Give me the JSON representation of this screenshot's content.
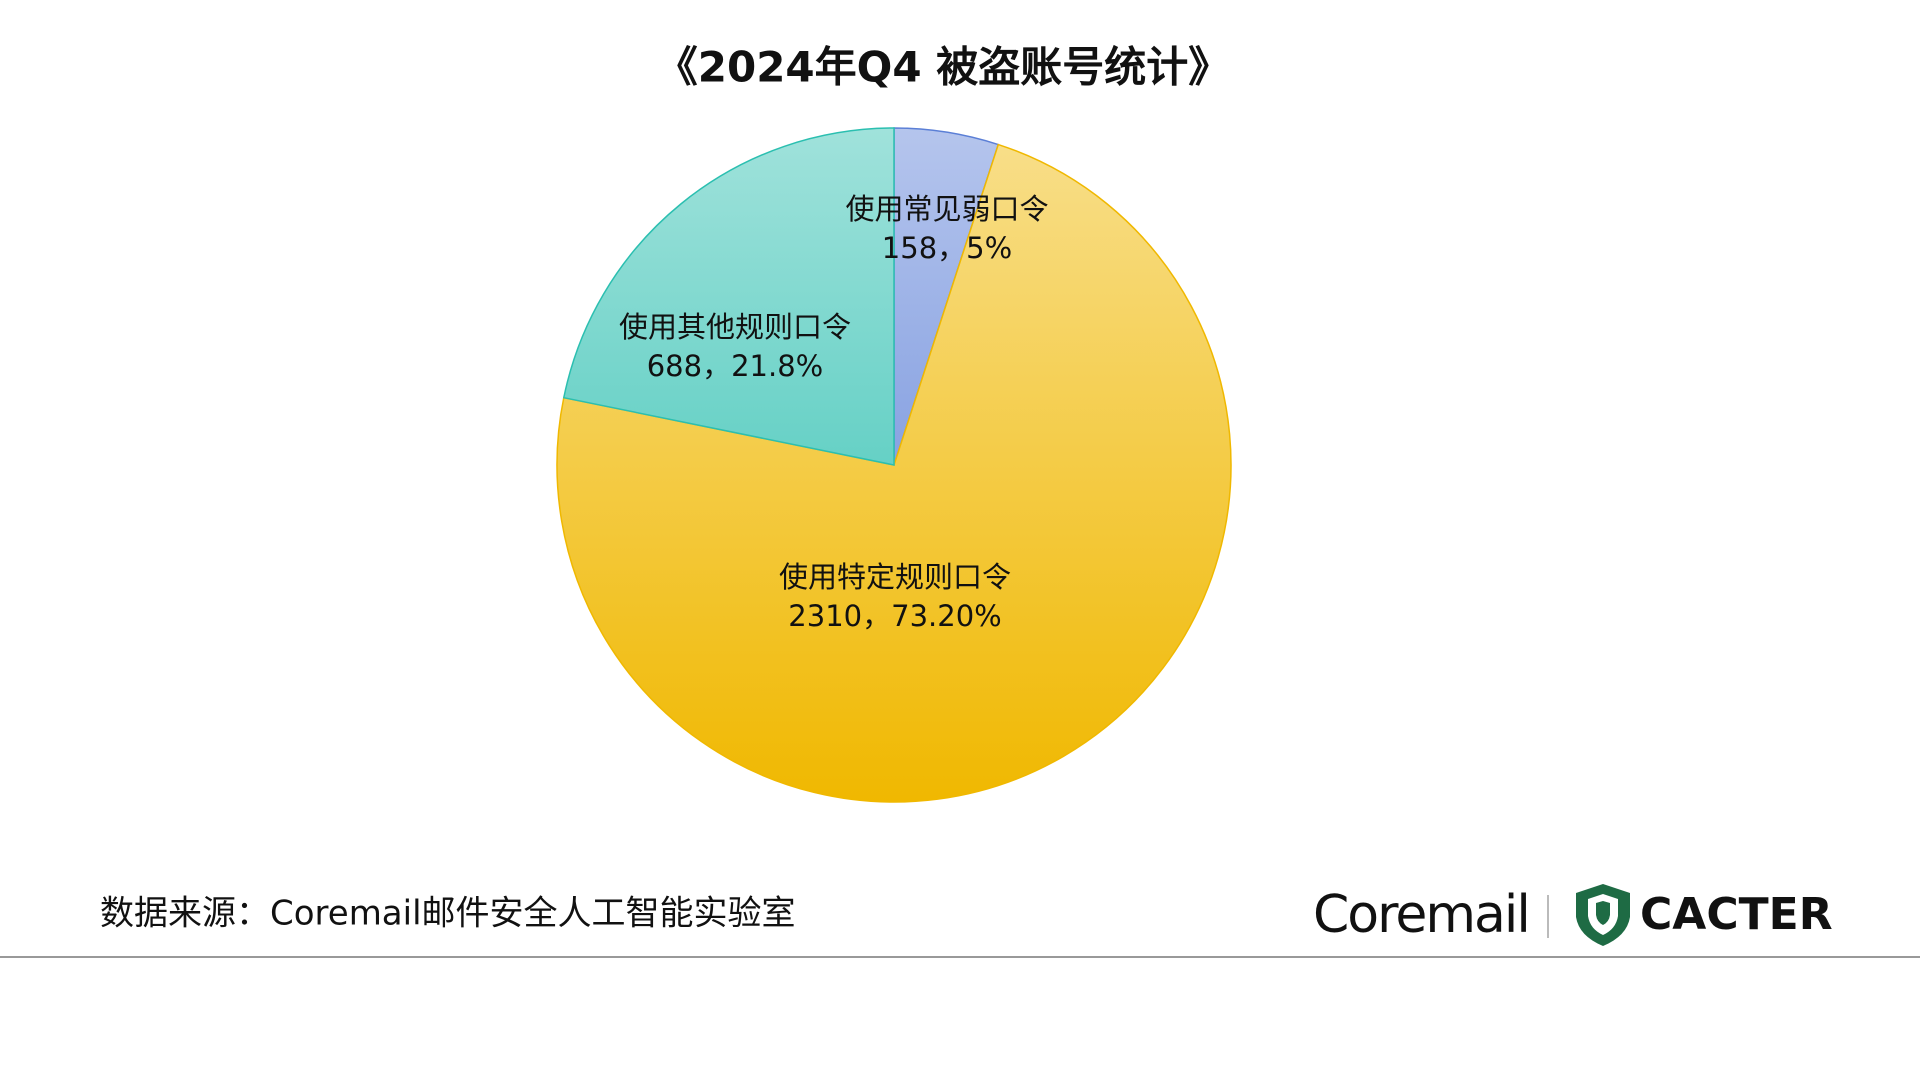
{
  "chart_data": {
    "type": "pie",
    "title": "《2024年Q4  被盗账号统计》",
    "categories": [
      "使用常见弱口令",
      "使用特定规则口令",
      "使用其他规则口令"
    ],
    "values": [
      158,
      2310,
      688
    ],
    "percents": [
      5,
      73.2,
      21.8
    ],
    "percent_labels": [
      "5%",
      "73.20%",
      "21.8%"
    ],
    "separator": "，",
    "colors": [
      "#5b7fd6",
      "#f0b800",
      "#2bbfb0"
    ]
  },
  "footer": {
    "source": "数据来源：Coremail邮件安全人工智能实验室",
    "brand_1": "Coremail",
    "brand_2": "CACTER"
  }
}
